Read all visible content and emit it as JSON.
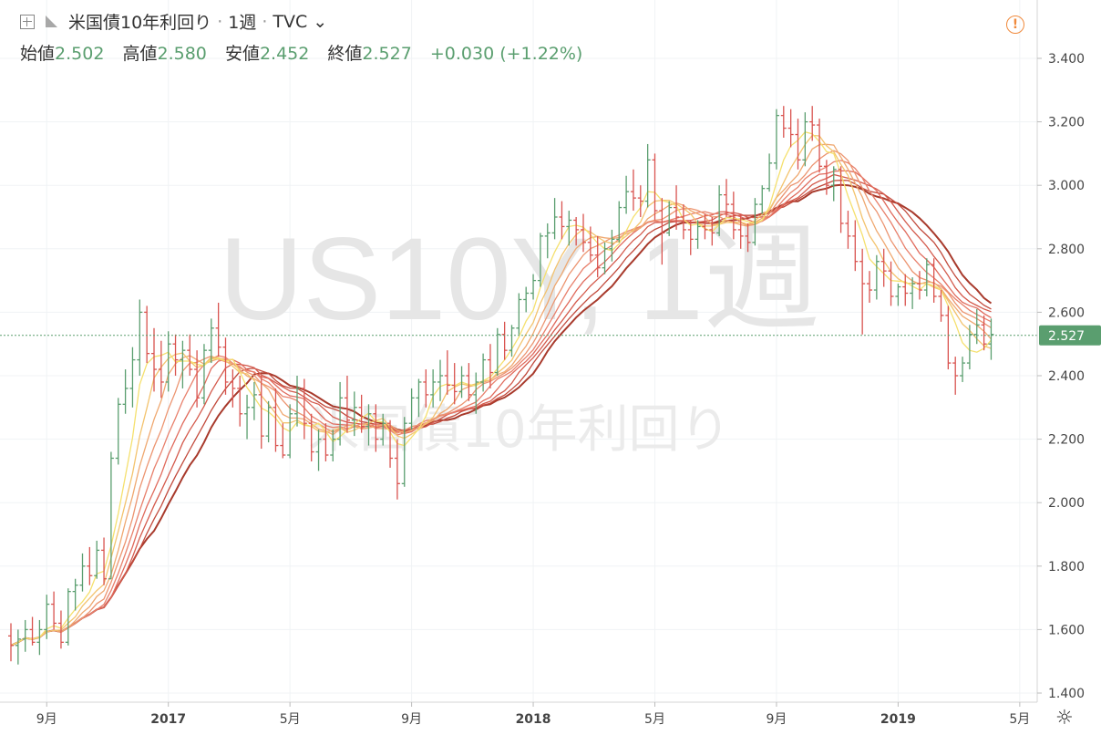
{
  "header": {
    "symbol_title": "米国債10年利回り",
    "sep": "·",
    "interval": "1週",
    "source": "TVC",
    "dropdown_glyph": "⌄",
    "warning_glyph": "!"
  },
  "ohlc": {
    "open_label": "始値",
    "open_value": "2.502",
    "high_label": "高値",
    "high_value": "2.580",
    "low_label": "安値",
    "low_value": "2.452",
    "close_label": "終値",
    "close_value": "2.527",
    "change": "+0.030 (+1.22%)"
  },
  "watermark": {
    "line1": "US10Y, 1週",
    "line2": "米国債10年利回り"
  },
  "settings_glyph": "☼",
  "colors": {
    "up": "#5a9e6f",
    "down": "#d9534f",
    "price_line": "#5a9e6f",
    "ribbon": [
      "#f5e06e",
      "#f3c36e",
      "#efa870",
      "#ec9470",
      "#e8806c",
      "#e06a5c",
      "#d45a4c",
      "#c24a3c",
      "#a83a2c"
    ]
  },
  "chart_data": {
    "type": "bar",
    "title": "米国債10年利回り",
    "interval": "1週",
    "y_axis": {
      "position": "right",
      "range": [
        1.4,
        3.45
      ],
      "ticks": [
        "1.400",
        "1.600",
        "1.800",
        "2.000",
        "2.200",
        "2.400",
        "2.600",
        "2.800",
        "3.000",
        "3.200",
        "3.400"
      ]
    },
    "x_axis": {
      "ticks": [
        {
          "label": "9月",
          "week": 5
        },
        {
          "label": "2017",
          "week": 22
        },
        {
          "label": "5月",
          "week": 39
        },
        {
          "label": "9月",
          "week": 56
        },
        {
          "label": "2018",
          "week": 73
        },
        {
          "label": "5月",
          "week": 90
        },
        {
          "label": "9月",
          "week": 107
        },
        {
          "label": "2019",
          "week": 124
        },
        {
          "label": "5月",
          "week": 141
        }
      ]
    },
    "last_price": {
      "value": 2.527,
      "label": "2.527"
    },
    "ohlc_bars": [
      [
        1.58,
        1.62,
        1.5,
        1.55
      ],
      [
        1.55,
        1.6,
        1.49,
        1.57
      ],
      [
        1.57,
        1.63,
        1.53,
        1.6
      ],
      [
        1.6,
        1.64,
        1.55,
        1.56
      ],
      [
        1.56,
        1.63,
        1.52,
        1.6
      ],
      [
        1.6,
        1.71,
        1.57,
        1.68
      ],
      [
        1.68,
        1.72,
        1.6,
        1.62
      ],
      [
        1.62,
        1.66,
        1.54,
        1.56
      ],
      [
        1.56,
        1.73,
        1.55,
        1.72
      ],
      [
        1.72,
        1.76,
        1.66,
        1.74
      ],
      [
        1.74,
        1.84,
        1.72,
        1.8
      ],
      [
        1.8,
        1.86,
        1.74,
        1.77
      ],
      [
        1.77,
        1.88,
        1.76,
        1.85
      ],
      [
        1.85,
        1.89,
        1.74,
        1.76
      ],
      [
        1.76,
        2.16,
        1.76,
        2.14
      ],
      [
        2.14,
        2.33,
        2.12,
        2.31
      ],
      [
        2.31,
        2.42,
        2.28,
        2.36
      ],
      [
        2.36,
        2.49,
        2.3,
        2.45
      ],
      [
        2.45,
        2.64,
        2.4,
        2.6
      ],
      [
        2.6,
        2.62,
        2.44,
        2.47
      ],
      [
        2.47,
        2.55,
        2.35,
        2.42
      ],
      [
        2.42,
        2.51,
        2.33,
        2.38
      ],
      [
        2.38,
        2.54,
        2.35,
        2.5
      ],
      [
        2.5,
        2.53,
        2.4,
        2.45
      ],
      [
        2.45,
        2.51,
        2.36,
        2.48
      ],
      [
        2.48,
        2.53,
        2.4,
        2.42
      ],
      [
        2.42,
        2.48,
        2.3,
        2.33
      ],
      [
        2.33,
        2.5,
        2.31,
        2.48
      ],
      [
        2.48,
        2.58,
        2.44,
        2.55
      ],
      [
        2.55,
        2.63,
        2.46,
        2.49
      ],
      [
        2.49,
        2.52,
        2.34,
        2.38
      ],
      [
        2.38,
        2.42,
        2.3,
        2.36
      ],
      [
        2.36,
        2.4,
        2.24,
        2.28
      ],
      [
        2.28,
        2.34,
        2.2,
        2.3
      ],
      [
        2.3,
        2.38,
        2.26,
        2.34
      ],
      [
        2.34,
        2.4,
        2.17,
        2.21
      ],
      [
        2.21,
        2.32,
        2.19,
        2.3
      ],
      [
        2.3,
        2.36,
        2.16,
        2.18
      ],
      [
        2.18,
        2.25,
        2.14,
        2.15
      ],
      [
        2.15,
        2.31,
        2.14,
        2.28
      ],
      [
        2.28,
        2.4,
        2.24,
        2.36
      ],
      [
        2.36,
        2.39,
        2.2,
        2.25
      ],
      [
        2.25,
        2.28,
        2.13,
        2.16
      ],
      [
        2.16,
        2.23,
        2.1,
        2.2
      ],
      [
        2.2,
        2.25,
        2.13,
        2.15
      ],
      [
        2.15,
        2.23,
        2.13,
        2.2
      ],
      [
        2.2,
        2.38,
        2.18,
        2.33
      ],
      [
        2.33,
        2.4,
        2.22,
        2.26
      ],
      [
        2.26,
        2.35,
        2.21,
        2.3
      ],
      [
        2.3,
        2.34,
        2.22,
        2.24
      ],
      [
        2.24,
        2.31,
        2.18,
        2.28
      ],
      [
        2.28,
        2.31,
        2.16,
        2.2
      ],
      [
        2.2,
        2.28,
        2.18,
        2.25
      ],
      [
        2.25,
        2.26,
        2.11,
        2.14
      ],
      [
        2.14,
        2.2,
        2.01,
        2.06
      ],
      [
        2.06,
        2.27,
        2.05,
        2.25
      ],
      [
        2.25,
        2.36,
        2.23,
        2.33
      ],
      [
        2.33,
        2.39,
        2.27,
        2.38
      ],
      [
        2.38,
        2.42,
        2.3,
        2.34
      ],
      [
        2.34,
        2.42,
        2.3,
        2.38
      ],
      [
        2.38,
        2.45,
        2.32,
        2.4
      ],
      [
        2.4,
        2.48,
        2.34,
        2.37
      ],
      [
        2.37,
        2.44,
        2.31,
        2.35
      ],
      [
        2.35,
        2.43,
        2.33,
        2.4
      ],
      [
        2.4,
        2.44,
        2.32,
        2.34
      ],
      [
        2.34,
        2.41,
        2.28,
        2.38
      ],
      [
        2.38,
        2.47,
        2.35,
        2.45
      ],
      [
        2.45,
        2.5,
        2.36,
        2.41
      ],
      [
        2.41,
        2.55,
        2.4,
        2.53
      ],
      [
        2.53,
        2.57,
        2.45,
        2.48
      ],
      [
        2.48,
        2.56,
        2.46,
        2.55
      ],
      [
        2.55,
        2.66,
        2.53,
        2.64
      ],
      [
        2.64,
        2.68,
        2.6,
        2.66
      ],
      [
        2.66,
        2.72,
        2.64,
        2.7
      ],
      [
        2.7,
        2.85,
        2.68,
        2.84
      ],
      [
        2.84,
        2.88,
        2.77,
        2.85
      ],
      [
        2.85,
        2.96,
        2.83,
        2.9
      ],
      [
        2.9,
        2.95,
        2.83,
        2.87
      ],
      [
        2.87,
        2.92,
        2.81,
        2.89
      ],
      [
        2.89,
        2.9,
        2.81,
        2.86
      ],
      [
        2.86,
        2.91,
        2.79,
        2.82
      ],
      [
        2.82,
        2.87,
        2.76,
        2.78
      ],
      [
        2.78,
        2.84,
        2.71,
        2.74
      ],
      [
        2.74,
        2.82,
        2.72,
        2.8
      ],
      [
        2.8,
        2.86,
        2.76,
        2.83
      ],
      [
        2.83,
        2.95,
        2.82,
        2.93
      ],
      [
        2.93,
        3.03,
        2.91,
        2.98
      ],
      [
        2.98,
        3.05,
        2.92,
        2.96
      ],
      [
        2.96,
        3.0,
        2.9,
        2.95
      ],
      [
        2.95,
        3.13,
        2.93,
        3.08
      ],
      [
        3.08,
        3.1,
        2.89,
        2.92
      ],
      [
        2.92,
        2.96,
        2.75,
        2.85
      ],
      [
        2.85,
        2.95,
        2.84,
        2.93
      ],
      [
        2.93,
        3.0,
        2.86,
        2.9
      ],
      [
        2.9,
        2.94,
        2.83,
        2.86
      ],
      [
        2.86,
        2.89,
        2.78,
        2.83
      ],
      [
        2.83,
        2.89,
        2.8,
        2.87
      ],
      [
        2.87,
        2.91,
        2.83,
        2.86
      ],
      [
        2.86,
        2.9,
        2.81,
        2.85
      ],
      [
        2.85,
        3.0,
        2.84,
        2.97
      ],
      [
        2.97,
        3.02,
        2.9,
        2.94
      ],
      [
        2.94,
        2.98,
        2.83,
        2.86
      ],
      [
        2.86,
        2.91,
        2.8,
        2.84
      ],
      [
        2.84,
        2.88,
        2.79,
        2.82
      ],
      [
        2.82,
        2.96,
        2.81,
        2.94
      ],
      [
        2.94,
        3.0,
        2.91,
        2.99
      ],
      [
        2.99,
        3.1,
        2.98,
        3.07
      ],
      [
        3.07,
        3.24,
        3.05,
        3.22
      ],
      [
        3.22,
        3.25,
        3.15,
        3.18
      ],
      [
        3.18,
        3.24,
        3.12,
        3.16
      ],
      [
        3.16,
        3.21,
        3.05,
        3.08
      ],
      [
        3.08,
        3.23,
        3.06,
        3.2
      ],
      [
        3.2,
        3.25,
        3.14,
        3.19
      ],
      [
        3.19,
        3.21,
        3.04,
        3.06
      ],
      [
        3.06,
        3.08,
        2.97,
        3.0
      ],
      [
        3.0,
        3.06,
        2.95,
        3.05
      ],
      [
        3.05,
        3.06,
        2.85,
        2.88
      ],
      [
        2.88,
        2.92,
        2.8,
        2.84
      ],
      [
        2.84,
        2.89,
        2.73,
        2.76
      ],
      [
        2.76,
        2.8,
        2.53,
        2.69
      ],
      [
        2.69,
        2.73,
        2.63,
        2.67
      ],
      [
        2.67,
        2.78,
        2.64,
        2.76
      ],
      [
        2.76,
        2.8,
        2.68,
        2.73
      ],
      [
        2.73,
        2.76,
        2.62,
        2.65
      ],
      [
        2.65,
        2.69,
        2.62,
        2.68
      ],
      [
        2.68,
        2.72,
        2.62,
        2.66
      ],
      [
        2.66,
        2.71,
        2.61,
        2.69
      ],
      [
        2.69,
        2.73,
        2.64,
        2.67
      ],
      [
        2.67,
        2.77,
        2.65,
        2.75
      ],
      [
        2.75,
        2.77,
        2.63,
        2.65
      ],
      [
        2.65,
        2.67,
        2.57,
        2.59
      ],
      [
        2.59,
        2.62,
        2.42,
        2.44
      ],
      [
        2.44,
        2.46,
        2.34,
        2.4
      ],
      [
        2.4,
        2.46,
        2.38,
        2.44
      ],
      [
        2.44,
        2.56,
        2.42,
        2.53
      ],
      [
        2.53,
        2.61,
        2.5,
        2.56
      ],
      [
        2.56,
        2.59,
        2.48,
        2.5
      ],
      [
        2.5,
        2.58,
        2.45,
        2.53
      ]
    ],
    "ribbon_smas": [
      5,
      7,
      9,
      11,
      13,
      15,
      17,
      19,
      21
    ]
  }
}
